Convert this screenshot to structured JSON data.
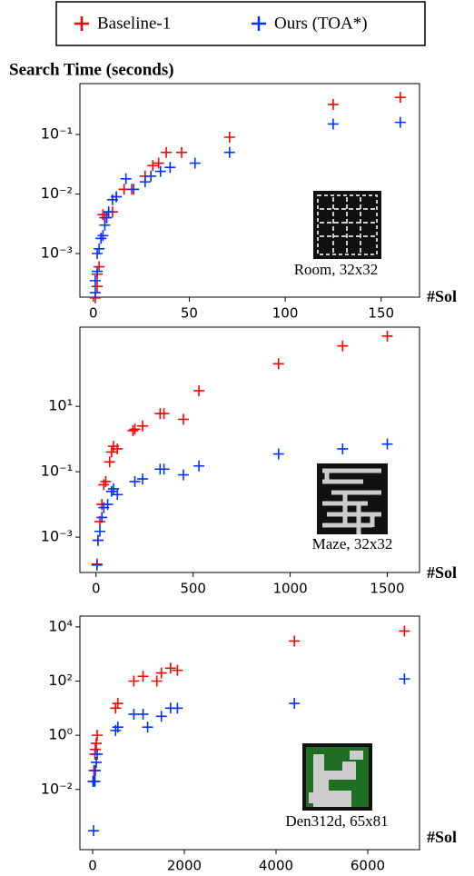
{
  "chart_data": [
    {
      "type": "scatter",
      "title": "Search Time (seconds)",
      "xlabel": "#Sol",
      "annotation": "Room, 32x32",
      "log_y": true,
      "xlim": [
        -7,
        170
      ],
      "xticks": [
        0,
        50,
        100,
        150
      ],
      "ylim": [
        0.000185,
        0.716
      ],
      "yticks": [
        {
          "value": 0.1,
          "label": "10⁻¹"
        },
        {
          "value": 0.01,
          "label": "10⁻²"
        },
        {
          "value": 0.001,
          "label": "10⁻³"
        }
      ],
      "series": [
        {
          "name": "Baseline-1",
          "color": "#ff0000",
          "x": [
            160,
            125,
            71,
            46,
            38,
            34,
            31,
            27,
            20,
            16,
            12,
            10,
            8,
            6,
            5,
            4,
            3,
            2,
            2,
            1
          ],
          "values": [
            0.42,
            0.32,
            0.09,
            0.05,
            0.05,
            0.033,
            0.03,
            0.02,
            0.012,
            0.012,
            0.009,
            0.005,
            0.005,
            0.004,
            0.0045,
            0.0018,
            0.0006,
            0.00045,
            0.00028,
            0.00018
          ]
        },
        {
          "name": "Ours (TOA*)",
          "color": "#0033ff",
          "x": [
            160,
            125,
            71,
            53,
            40,
            35,
            30,
            27,
            21,
            17,
            12,
            10,
            8,
            7,
            6,
            5,
            4,
            3,
            2,
            2,
            1,
            1
          ],
          "values": [
            0.16,
            0.15,
            0.05,
            0.033,
            0.028,
            0.024,
            0.02,
            0.016,
            0.012,
            0.018,
            0.009,
            0.008,
            0.005,
            0.004,
            0.003,
            0.002,
            0.0018,
            0.0012,
            0.001,
            0.0005,
            0.00035,
            0.00022
          ]
        }
      ]
    },
    {
      "type": "scatter",
      "xlabel": "#Sol",
      "annotation": "Maze, 32x32",
      "log_y": true,
      "xlim": [
        -83,
        1666
      ],
      "xticks": [
        0,
        500,
        1000,
        1500
      ],
      "ylim": [
        8.3e-05,
        2630
      ],
      "yticks": [
        {
          "value": 10,
          "label": "10¹"
        },
        {
          "value": 0.1,
          "label": "10⁻¹"
        },
        {
          "value": 0.001,
          "label": "10⁻³"
        }
      ],
      "series": [
        {
          "color": "#ff0000",
          "x": [
            1500,
            1270,
            940,
            530,
            450,
            350,
            330,
            240,
            200,
            190,
            110,
            90,
            80,
            70,
            50,
            40,
            30,
            20,
            10,
            5
          ],
          "values": [
            1400,
            700,
            200,
            30,
            4,
            6,
            6,
            2.5,
            2,
            1.8,
            0.5,
            0.6,
            0.4,
            0.2,
            0.05,
            0.04,
            0.01,
            0.003,
            0.0008,
            0.00015
          ]
        },
        {
          "color": "#0033ff",
          "x": [
            1500,
            1270,
            940,
            530,
            450,
            350,
            330,
            240,
            200,
            110,
            90,
            80,
            60,
            40,
            30,
            20,
            10,
            5
          ],
          "values": [
            0.7,
            0.5,
            0.35,
            0.15,
            0.08,
            0.12,
            0.12,
            0.06,
            0.05,
            0.02,
            0.03,
            0.025,
            0.01,
            0.008,
            0.004,
            0.0015,
            0.0008,
            0.00014
          ]
        }
      ]
    },
    {
      "type": "scatter",
      "xlabel": "#Sol",
      "annotation": "Den312d, 65x81",
      "log_y": true,
      "xlim": [
        -277,
        7129
      ],
      "xticks": [
        0,
        2000,
        4000,
        6000
      ],
      "ylim": [
        6e-05,
        25000
      ],
      "yticks": [
        {
          "value": 10000,
          "label": "10⁴"
        },
        {
          "value": 100,
          "label": "10²"
        },
        {
          "value": 1,
          "label": "10⁰"
        },
        {
          "value": 0.01,
          "label": "10⁻²"
        }
      ],
      "series": [
        {
          "color": "#ff0000",
          "x": [
            6800,
            4400,
            1850,
            1700,
            1500,
            1400,
            1100,
            900,
            550,
            500,
            100,
            80,
            60,
            50,
            30,
            10
          ],
          "values": [
            7000,
            3000,
            250,
            300,
            200,
            100,
            150,
            100,
            15,
            10,
            1,
            0.5,
            0.3,
            0.2,
            0.05,
            0.02
          ]
        },
        {
          "color": "#0033ff",
          "x": [
            6800,
            4400,
            1850,
            1700,
            1500,
            1200,
            1100,
            900,
            550,
            500,
            100,
            80,
            60,
            50,
            30,
            10,
            20
          ],
          "values": [
            120,
            15,
            10,
            10,
            5,
            2,
            6,
            6,
            2,
            1.5,
            0.2,
            0.1,
            0.05,
            0.02,
            0.02,
            0.02,
            0.0003
          ]
        }
      ]
    }
  ]
}
